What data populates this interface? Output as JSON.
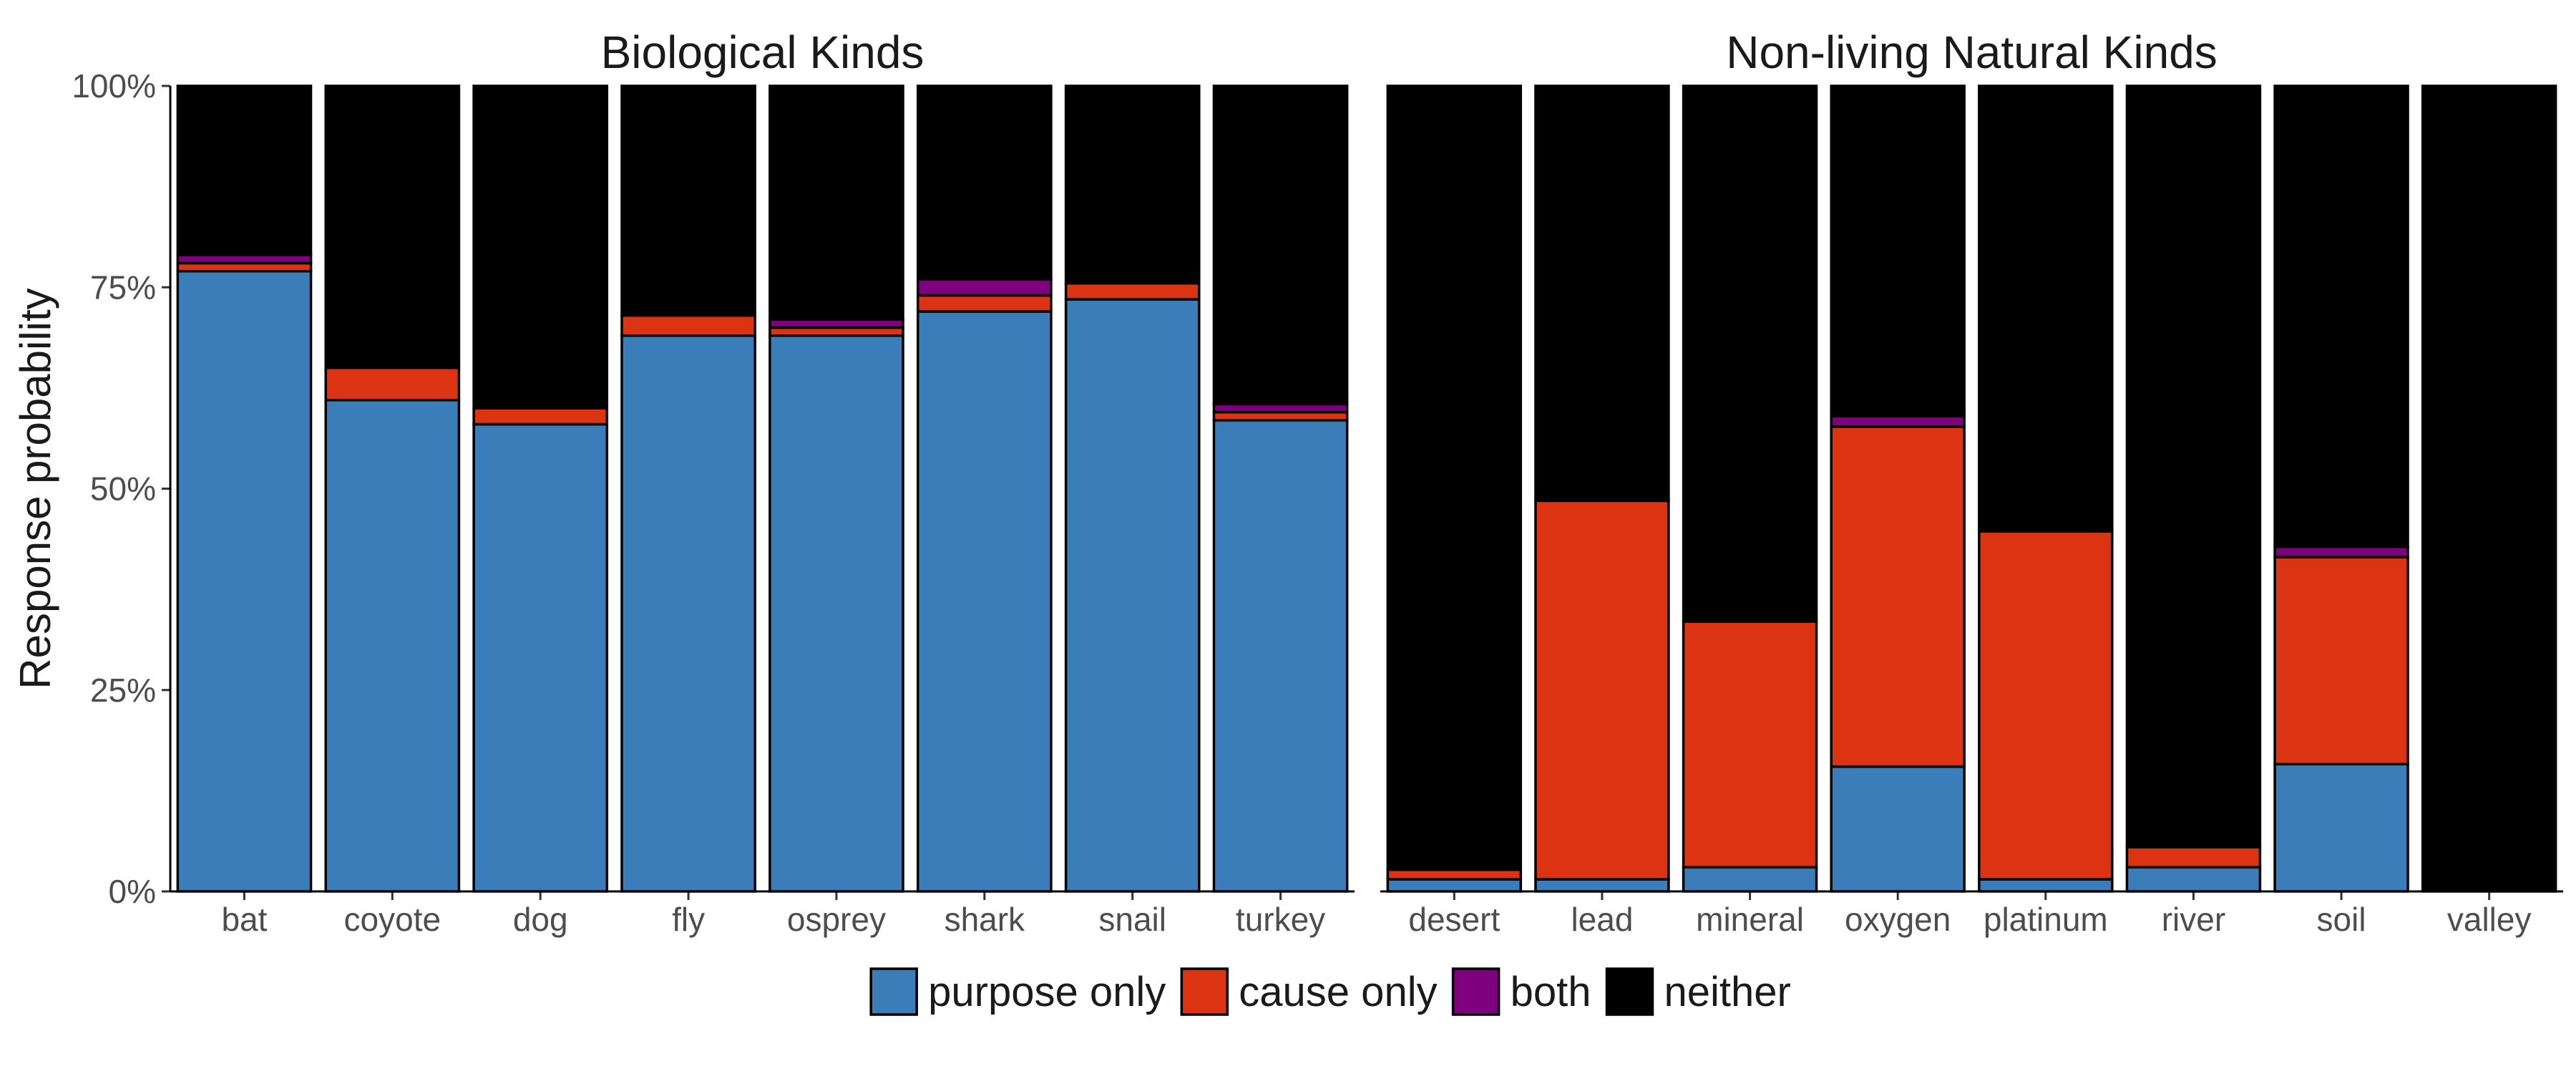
{
  "chart_data": {
    "type": "bar",
    "stacked": true,
    "ylabel": "Response probability",
    "ylim": [
      0,
      1
    ],
    "y_ticks": [
      "0%",
      "25%",
      "50%",
      "75%",
      "100%"
    ],
    "legend": {
      "placement": "bottom",
      "entries": [
        {
          "name": "purpose only",
          "color": "#3A7DB9"
        },
        {
          "name": "cause only",
          "color": "#DC3412"
        },
        {
          "name": "both",
          "color": "#7E007E"
        },
        {
          "name": "neither",
          "color": "#000000"
        }
      ]
    },
    "panels": [
      {
        "title": "Biological Kinds",
        "categories": [
          "bat",
          "coyote",
          "dog",
          "fly",
          "osprey",
          "shark",
          "snail",
          "turkey"
        ],
        "series": [
          {
            "name": "purpose only",
            "values": [
              0.77,
              0.61,
              0.58,
              0.69,
              0.69,
              0.72,
              0.735,
              0.585
            ]
          },
          {
            "name": "cause only",
            "values": [
              0.01,
              0.04,
              0.02,
              0.025,
              0.01,
              0.02,
              0.02,
              0.01
            ]
          },
          {
            "name": "both",
            "values": [
              0.01,
              0.0,
              0.0,
              0.0,
              0.01,
              0.02,
              0.0,
              0.01
            ]
          },
          {
            "name": "neither",
            "values": [
              0.21,
              0.35,
              0.4,
              0.285,
              0.29,
              0.24,
              0.245,
              0.395
            ]
          }
        ]
      },
      {
        "title": "Non-living Natural Kinds",
        "categories": [
          "desert",
          "lead",
          "mineral",
          "oxygen",
          "platinum",
          "river",
          "soil",
          "valley"
        ],
        "series": [
          {
            "name": "purpose only",
            "values": [
              0.015,
              0.015,
              0.03,
              0.155,
              0.015,
              0.03,
              0.158,
              0.0
            ]
          },
          {
            "name": "cause only",
            "values": [
              0.012,
              0.47,
              0.305,
              0.422,
              0.432,
              0.025,
              0.257,
              0.0
            ]
          },
          {
            "name": "both",
            "values": [
              0.0,
              0.0,
              0.0,
              0.013,
              0.0,
              0.0,
              0.013,
              0.0
            ]
          },
          {
            "name": "neither",
            "values": [
              0.973,
              0.515,
              0.665,
              0.41,
              0.553,
              0.945,
              0.572,
              1.0
            ]
          }
        ]
      }
    ]
  }
}
